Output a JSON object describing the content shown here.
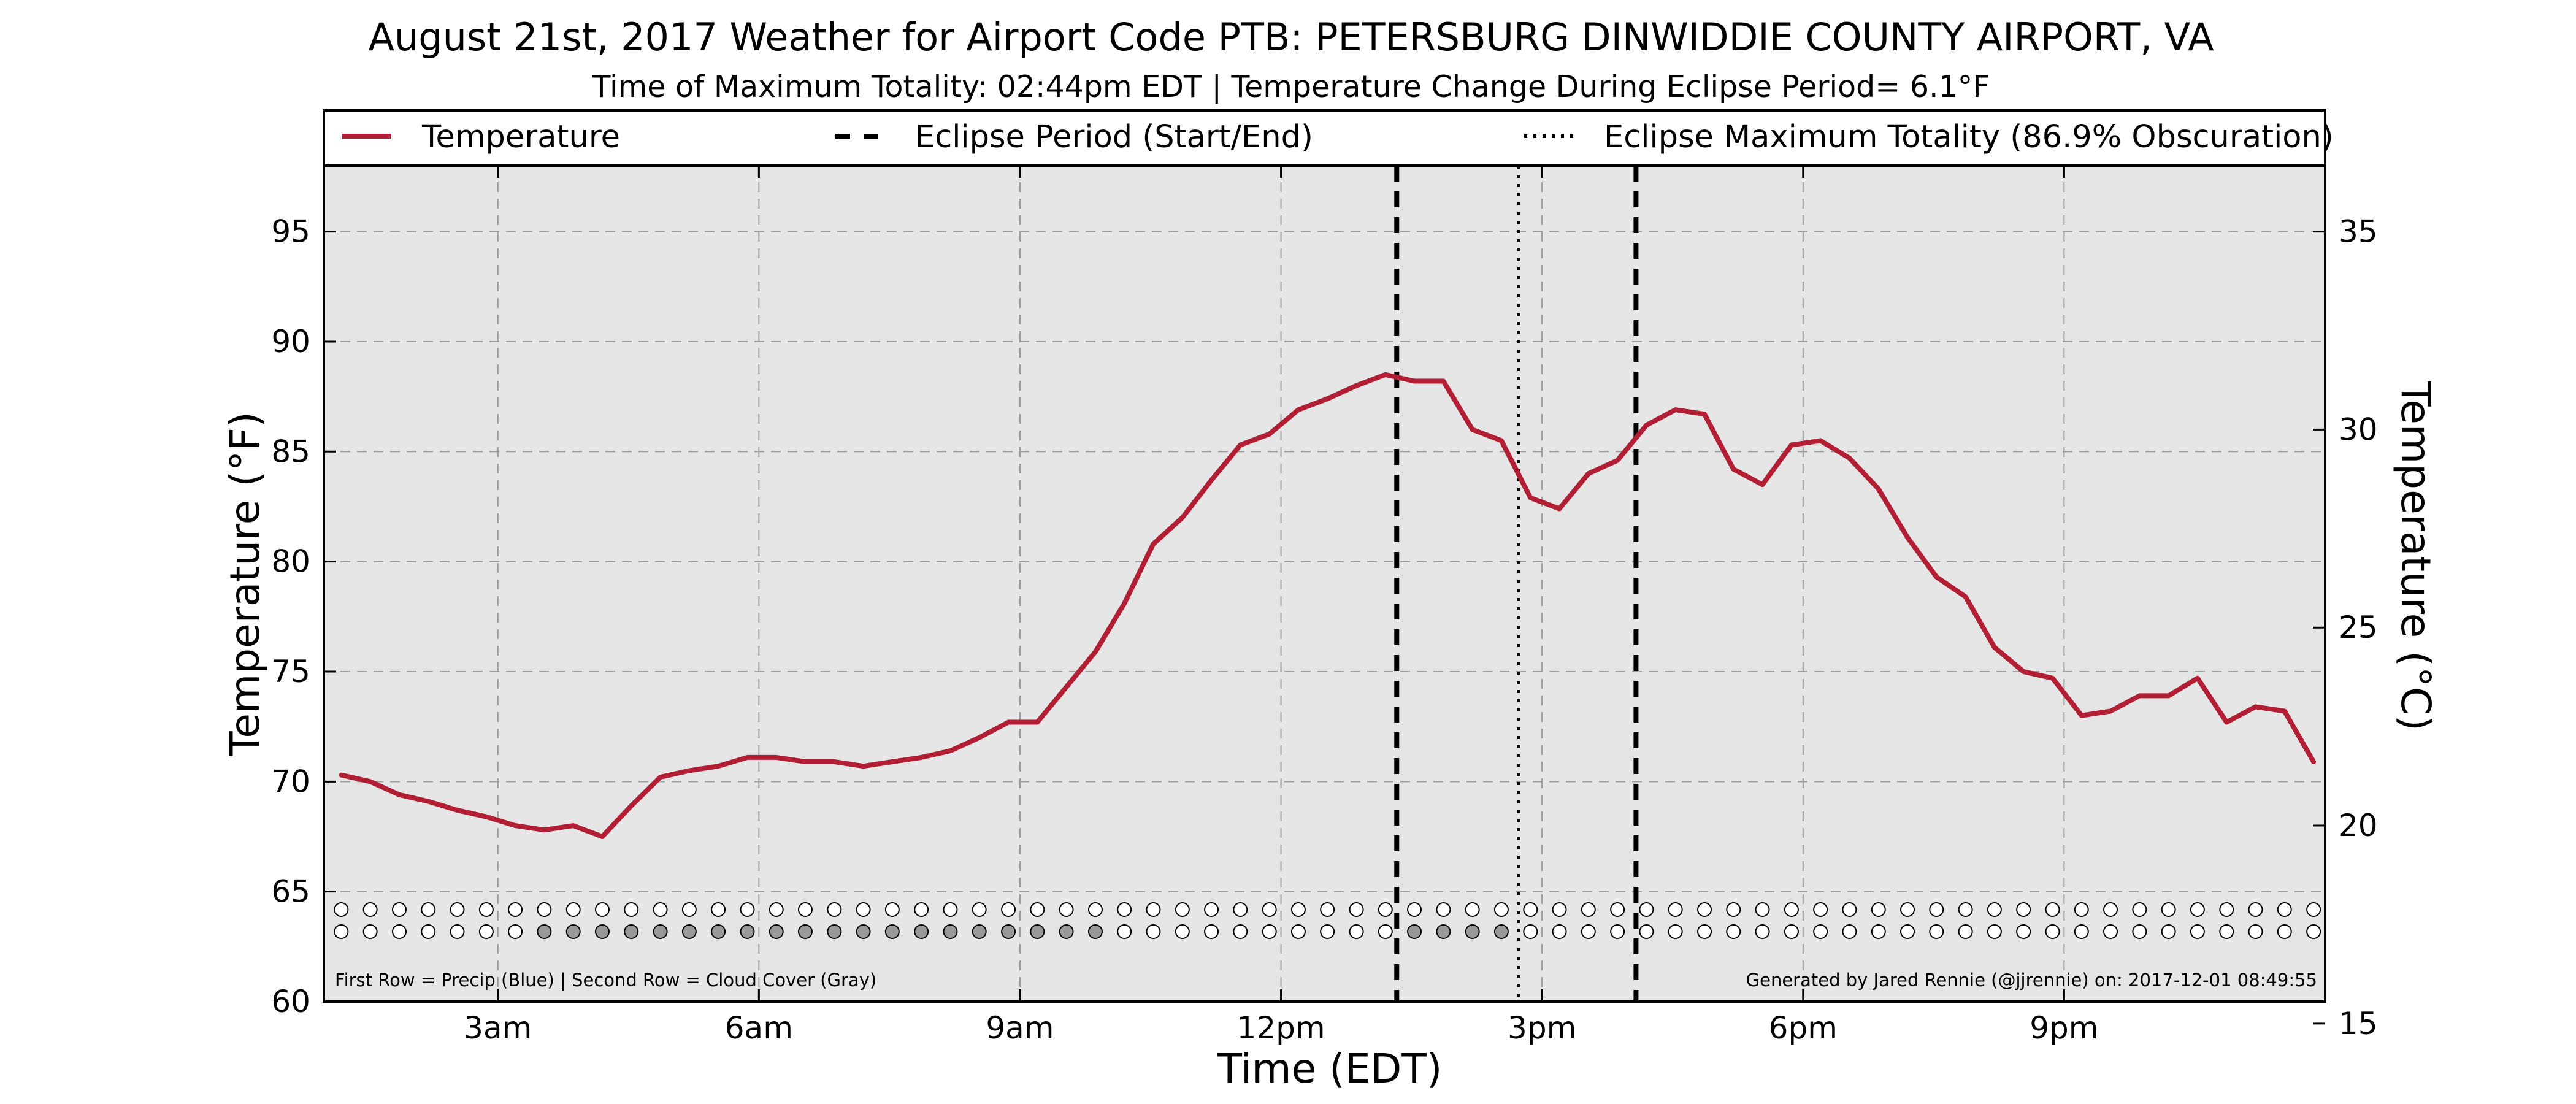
{
  "chart_data": {
    "type": "line",
    "title": "August 21st, 2017 Weather for Airport Code PTB: PETERSBURG DINWIDDIE COUNTY AIRPORT, VA",
    "subtitle": "Time of Maximum Totality: 02:44pm EDT | Temperature Change During Eclipse Period= 6.1°F",
    "xlabel": "Time (EDT)",
    "ylabel": "Temperature (°F)",
    "ylabel_right": "Temperature (°C)",
    "xlim": [
      1.0,
      24.0
    ],
    "ylim": [
      60,
      98
    ],
    "ylim_right_c": [
      15.56,
      36.67
    ],
    "grid": true,
    "legend_position": "top",
    "x_ticks": [
      {
        "value": 3,
        "label": "3am"
      },
      {
        "value": 6,
        "label": "6am"
      },
      {
        "value": 9,
        "label": "9am"
      },
      {
        "value": 12,
        "label": "12pm"
      },
      {
        "value": 15,
        "label": "3pm"
      },
      {
        "value": 18,
        "label": "6pm"
      },
      {
        "value": 21,
        "label": "9pm"
      }
    ],
    "y_ticks_f": [
      60,
      65,
      70,
      75,
      80,
      85,
      90,
      95
    ],
    "y_ticks_c": [
      15,
      20,
      25,
      30,
      35
    ],
    "series": [
      {
        "name": "Temperature",
        "color": "#b21f35",
        "x": [
          1.2,
          1.533,
          1.867,
          2.2,
          2.533,
          2.867,
          3.2,
          3.533,
          3.867,
          4.2,
          4.533,
          4.867,
          5.2,
          5.533,
          5.867,
          6.2,
          6.533,
          6.867,
          7.2,
          7.533,
          7.867,
          8.2,
          8.533,
          8.867,
          9.2,
          9.533,
          9.867,
          10.2,
          10.533,
          10.867,
          11.2,
          11.533,
          11.867,
          12.2,
          12.533,
          12.867,
          13.2,
          13.533,
          13.867,
          14.2,
          14.533,
          14.867,
          15.2,
          15.533,
          15.867,
          16.2,
          16.533,
          16.867,
          17.2,
          17.533,
          17.867,
          18.2,
          18.533,
          18.867,
          19.2,
          19.533,
          19.867,
          20.2,
          20.533,
          20.867,
          21.2,
          21.533,
          21.867,
          22.2,
          22.533,
          22.867,
          23.2,
          23.533,
          23.867
        ],
        "values": [
          70.3,
          70.0,
          69.4,
          69.1,
          68.7,
          68.4,
          68.0,
          67.8,
          68.0,
          67.5,
          68.9,
          70.2,
          70.5,
          70.7,
          71.1,
          71.1,
          70.9,
          70.9,
          70.7,
          70.9,
          71.1,
          71.4,
          72.0,
          72.7,
          72.7,
          74.3,
          75.9,
          78.1,
          80.8,
          82.0,
          83.7,
          85.3,
          85.8,
          86.9,
          87.4,
          88.0,
          88.5,
          88.2,
          88.2,
          86.0,
          85.5,
          82.9,
          82.4,
          84.0,
          84.6,
          86.2,
          86.9,
          86.7,
          84.2,
          83.5,
          85.3,
          85.5,
          84.7,
          83.3,
          81.1,
          79.3,
          78.4,
          76.1,
          75.0,
          74.7,
          73.0,
          73.2,
          73.9,
          73.9,
          74.7,
          72.7,
          73.4,
          73.2,
          70.9
        ]
      }
    ],
    "eclipse": {
      "start": 13.33,
      "max": 14.73,
      "end": 16.08,
      "start_end_label": "Eclipse Period (Start/End)",
      "max_label": "Eclipse Maximum Totality (86.9% Obscuration)"
    },
    "dot_rows": {
      "first_row_name": "Precip (Blue)",
      "second_row_name": "Cloud Cover (Gray)",
      "x": [
        1.2,
        1.533,
        1.867,
        2.2,
        2.533,
        2.867,
        3.2,
        3.533,
        3.867,
        4.2,
        4.533,
        4.867,
        5.2,
        5.533,
        5.867,
        6.2,
        6.533,
        6.867,
        7.2,
        7.533,
        7.867,
        8.2,
        8.533,
        8.867,
        9.2,
        9.533,
        9.867,
        10.2,
        10.533,
        10.867,
        11.2,
        11.533,
        11.867,
        12.2,
        12.533,
        12.867,
        13.2,
        13.533,
        13.867,
        14.2,
        14.533,
        14.867,
        15.2,
        15.533,
        15.867,
        16.2,
        16.533,
        16.867,
        17.2,
        17.533,
        17.867,
        18.2,
        18.533,
        18.867,
        19.2,
        19.533,
        19.867,
        20.2,
        20.533,
        20.867,
        21.2,
        21.533,
        21.867,
        22.2,
        22.533,
        22.867,
        23.2,
        23.533,
        23.867
      ],
      "precip": [
        0,
        0,
        0,
        0,
        0,
        0,
        0,
        0,
        0,
        0,
        0,
        0,
        0,
        0,
        0,
        0,
        0,
        0,
        0,
        0,
        0,
        0,
        0,
        0,
        0,
        0,
        0,
        0,
        0,
        0,
        0,
        0,
        0,
        0,
        0,
        0,
        0,
        0,
        0,
        0,
        0,
        0,
        0,
        0,
        0,
        0,
        0,
        0,
        0,
        0,
        0,
        0,
        0,
        0,
        0,
        0,
        0,
        0,
        0,
        0,
        0,
        0,
        0,
        0,
        0,
        0,
        0,
        0,
        0
      ],
      "cloud": [
        0,
        0,
        0,
        0,
        0,
        0,
        0,
        1,
        1,
        1,
        1,
        1,
        1,
        1,
        1,
        1,
        1,
        1,
        1,
        1,
        1,
        1,
        1,
        1,
        1,
        1,
        1,
        0,
        0,
        0,
        0,
        0,
        0,
        0,
        0,
        0,
        0,
        1,
        1,
        1,
        1,
        0,
        0,
        0,
        0,
        0,
        0,
        0,
        0,
        0,
        0,
        0,
        0,
        0,
        0,
        0,
        0,
        0,
        0,
        0,
        0,
        0,
        0,
        0,
        0,
        0,
        0,
        0,
        0
      ],
      "cloud_color": "#999999",
      "empty_color": "#ffffff"
    }
  },
  "footer": {
    "left": "First Row = Precip (Blue) | Second Row = Cloud Cover (Gray)",
    "right": "Generated by Jared Rennie (@jjrennie) on: 2017-12-01 08:49:55"
  }
}
